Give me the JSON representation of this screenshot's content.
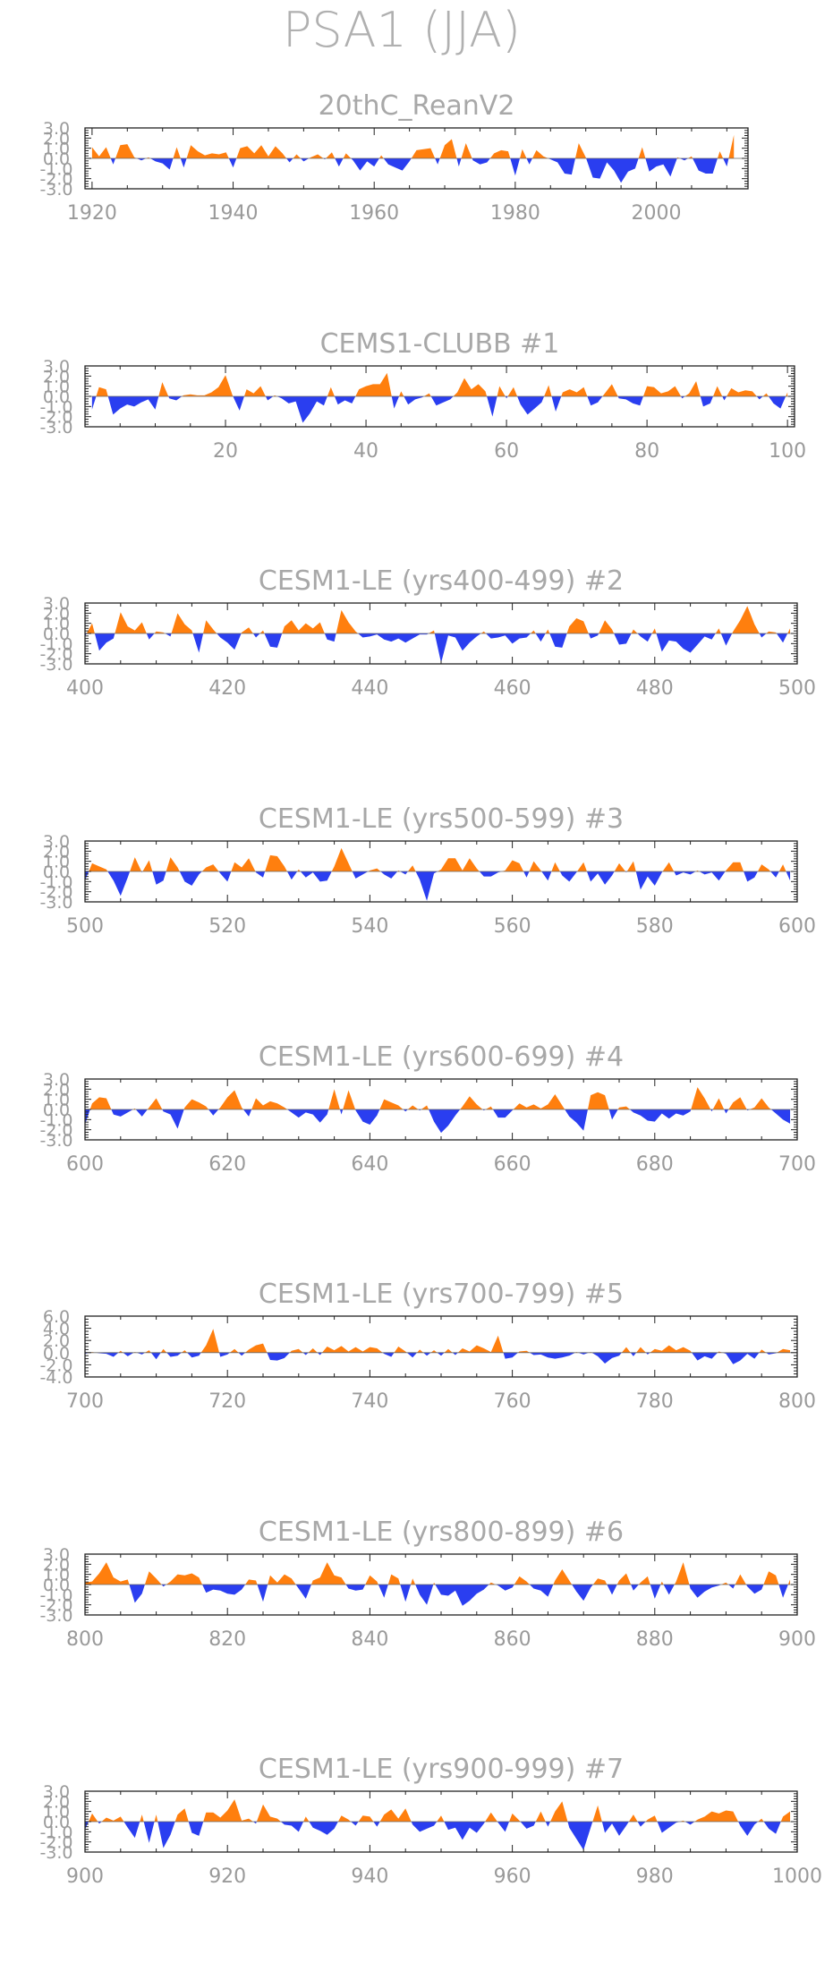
{
  "figure_title": "PSA1 (JJA)",
  "colors": {
    "positive": "#ff7f0e",
    "negative": "#2a3ef0",
    "text": "#a8a8a8",
    "axis": "#222222"
  },
  "chart_data": [
    {
      "type": "area",
      "title": "20thC_ReanV2",
      "x_start": 1920,
      "x_end": 2011,
      "xlim": [
        1919,
        2013
      ],
      "xticks": [
        1920,
        1940,
        1960,
        1980,
        2000
      ],
      "ylim": [
        -3,
        3
      ],
      "yticks": [
        "3.0",
        "2.0",
        "1.0",
        "0.0",
        "-1.0",
        "-2.0",
        "-3.0"
      ],
      "values": [
        1.1,
        0.2,
        1.1,
        -0.6,
        1.3,
        1.4,
        0.1,
        -0.2,
        0.1,
        -0.3,
        -0.5,
        -1.1,
        1.1,
        -0.9,
        1.3,
        0.7,
        0.3,
        0.5,
        0.4,
        0.6,
        -0.9,
        1.0,
        1.2,
        0.5,
        1.3,
        0.2,
        1.2,
        0.5,
        -0.4,
        0.4,
        -0.3,
        0.1,
        0.4,
        -0.1,
        0.6,
        -0.8,
        0.5,
        -0.2,
        -1.2,
        -0.3,
        -0.8,
        0.3,
        -0.6,
        -0.9,
        -1.2,
        -0.3,
        0.8,
        0.9,
        1.0,
        -0.6,
        1.3,
        1.9,
        -0.8,
        1.5,
        -0.2,
        -0.6,
        -0.4,
        0.5,
        0.8,
        0.7,
        -1.7,
        0.9,
        -0.6,
        0.8,
        0.2,
        -0.1,
        -0.4,
        -1.5,
        -1.6,
        1.5,
        0.1,
        -1.9,
        -2.0,
        -0.4,
        -1.2,
        -2.4,
        -1.3,
        -1.0,
        1.1,
        -1.3,
        -0.8,
        -0.6,
        -1.8,
        0.1,
        -0.2,
        0.2,
        -1.2,
        -1.5,
        -1.5,
        0.7,
        -0.8,
        2.3
      ]
    },
    {
      "type": "area",
      "title": "CEMS1-CLUBB          #1",
      "x_start": 1,
      "x_end": 100,
      "xlim": [
        0,
        101
      ],
      "xticks": [
        20,
        40,
        60,
        80,
        100
      ],
      "ylim": [
        -3,
        3
      ],
      "yticks": [
        "3.0",
        "2.0",
        "1.0",
        "0.0",
        "-1.0",
        "-2.0",
        "-3.0"
      ],
      "values": [
        -1.3,
        0.9,
        0.7,
        -1.8,
        -1.2,
        -0.8,
        -1.0,
        -0.6,
        -0.3,
        -1.3,
        1.4,
        -0.2,
        -0.4,
        0.1,
        0.2,
        0.1,
        0.1,
        0.4,
        0.9,
        2.1,
        0.1,
        -1.4,
        0.7,
        0.3,
        1.0,
        -0.4,
        0.1,
        -0.2,
        -0.7,
        -0.5,
        -2.6,
        -1.7,
        -0.5,
        -0.9,
        0.9,
        -0.8,
        -0.4,
        -0.7,
        0.7,
        1.0,
        1.2,
        1.2,
        2.3,
        -1.2,
        0.5,
        -0.8,
        -0.3,
        -0.1,
        0.3,
        -0.9,
        -0.6,
        -0.3,
        0.4,
        1.8,
        0.7,
        1.2,
        0.5,
        -2.0,
        1.0,
        -0.2,
        0.9,
        -0.8,
        -1.8,
        -1.2,
        -0.6,
        1.1,
        -1.5,
        0.4,
        0.7,
        0.4,
        0.9,
        -0.9,
        -0.6,
        0.3,
        1.2,
        -0.2,
        -0.3,
        -0.7,
        -0.9,
        1.0,
        0.9,
        0.3,
        0.5,
        1.0,
        -0.2,
        0.3,
        1.5,
        -1.0,
        -0.7,
        1.0,
        -0.4,
        0.8,
        0.4,
        0.6,
        0.5,
        -0.3,
        0.3,
        -0.7,
        -1.2,
        0.4
      ]
    },
    {
      "type": "area",
      "title": "CESM1-LE (yrs400-499) #2",
      "x_start": 400,
      "x_end": 499,
      "xlim": [
        400,
        500
      ],
      "xticks": [
        400,
        420,
        440,
        460,
        480,
        500
      ],
      "ylim": [
        -3,
        3
      ],
      "yticks": [
        "3.0",
        "2.0",
        "1.0",
        "0.0",
        "-1.0",
        "-2.0",
        "-3.0"
      ],
      "values": [
        -0.3,
        1.0,
        -1.7,
        -0.9,
        -0.5,
        2.1,
        0.7,
        0.3,
        1.1,
        -0.6,
        0.2,
        0.1,
        -0.3,
        2.0,
        0.9,
        0.3,
        -1.9,
        1.3,
        0.4,
        -0.4,
        -0.9,
        -1.6,
        0.1,
        0.6,
        -0.4,
        0.3,
        -1.3,
        -1.4,
        0.7,
        1.3,
        0.3,
        1.0,
        0.5,
        1.1,
        -0.6,
        -0.8,
        2.3,
        1.1,
        0.2,
        -0.4,
        -0.3,
        -0.1,
        -0.6,
        -0.8,
        -0.5,
        -0.9,
        -0.5,
        -0.1,
        -0.1,
        0.3,
        -2.9,
        -0.2,
        -0.4,
        -1.7,
        -0.9,
        -0.3,
        0.2,
        -0.5,
        -0.4,
        -0.2,
        -1.0,
        -0.5,
        -0.4,
        0.3,
        -0.8,
        0.4,
        -1.3,
        -1.4,
        0.7,
        1.5,
        1.2,
        -0.5,
        -0.2,
        1.3,
        0.4,
        -1.1,
        -1.0,
        0.4,
        -0.3,
        -0.8,
        0.5,
        -1.8,
        -0.7,
        -0.8,
        -1.5,
        -1.9,
        -1.1,
        -0.3,
        -0.6,
        0.5,
        -1.2,
        0.2,
        1.3,
        2.7,
        0.9,
        -0.4,
        0.2,
        0.1,
        -0.9,
        0.5
      ]
    },
    {
      "type": "area",
      "title": "CESM1-LE (yrs500-599) #3",
      "x_start": 500,
      "x_end": 599,
      "xlim": [
        500,
        600
      ],
      "xticks": [
        500,
        520,
        540,
        560,
        580,
        600
      ],
      "ylim": [
        -3,
        3
      ],
      "yticks": [
        "3.0",
        "2.0",
        "1.0",
        "0.0",
        "-1.0",
        "-2.0",
        "-3.0"
      ],
      "values": [
        -0.9,
        0.8,
        0.5,
        0.2,
        -0.9,
        -2.4,
        -0.6,
        1.4,
        -0.1,
        1.1,
        -1.3,
        -0.9,
        1.4,
        0.4,
        -1.0,
        -1.4,
        -0.3,
        0.4,
        0.7,
        -0.2,
        -1.0,
        0.9,
        0.4,
        1.3,
        -0.1,
        -0.6,
        1.6,
        1.5,
        0.5,
        -0.8,
        0.2,
        -0.6,
        -0.1,
        -1.0,
        -0.9,
        0.5,
        2.3,
        0.8,
        -0.7,
        -0.3,
        0.1,
        0.3,
        -0.3,
        -0.7,
        0.1,
        -0.3,
        0.6,
        -0.8,
        -2.9,
        -0.2,
        0.2,
        1.3,
        1.3,
        0.1,
        1.3,
        0.3,
        -0.5,
        -0.5,
        -0.1,
        0.1,
        1.1,
        0.8,
        -0.6,
        1.0,
        0.1,
        -0.9,
        0.9,
        -0.4,
        -1.0,
        -0.1,
        0.9,
        -1.0,
        -0.2,
        -1.3,
        -0.4,
        0.8,
        -0.1,
        1.0,
        -1.8,
        -0.5,
        -1.4,
        -0.1,
        0.9,
        -0.4,
        -0.1,
        -0.3,
        0.1,
        -0.3,
        -0.1,
        -0.9,
        0.1,
        0.9,
        0.9,
        -1.0,
        -0.6,
        0.7,
        0.2,
        -0.6,
        0.7,
        -0.9
      ]
    },
    {
      "type": "area",
      "title": "CESM1-LE (yrs600-699) #4",
      "x_start": 600,
      "x_end": 699,
      "xlim": [
        600,
        700
      ],
      "xticks": [
        600,
        620,
        640,
        660,
        680,
        700
      ],
      "ylim": [
        -3,
        3
      ],
      "yticks": [
        "3.0",
        "2.0",
        "1.0",
        "0.0",
        "-1.0",
        "-2.0",
        "-3.0"
      ],
      "values": [
        -1.5,
        0.6,
        1.2,
        1.1,
        -0.5,
        -0.7,
        -0.3,
        0.1,
        -0.7,
        0.2,
        1.1,
        -0.2,
        -0.5,
        -1.9,
        0.2,
        1.0,
        0.7,
        0.3,
        -0.6,
        0.2,
        1.2,
        1.9,
        0.2,
        -0.7,
        1.1,
        0.4,
        0.8,
        0.6,
        0.2,
        -0.3,
        -0.8,
        -0.3,
        -0.5,
        -1.3,
        -0.5,
        2.0,
        -0.5,
        1.9,
        -0.1,
        -1.2,
        -1.5,
        -0.6,
        1.0,
        0.7,
        0.4,
        -0.2,
        0.4,
        -0.1,
        0.4,
        -1.2,
        -2.3,
        -1.6,
        -0.6,
        0.3,
        1.3,
        0.5,
        -0.1,
        0.3,
        -0.8,
        -0.8,
        -0.1,
        0.6,
        0.2,
        0.5,
        0.1,
        0.5,
        1.5,
        0.4,
        -0.7,
        -1.3,
        -2.1,
        1.4,
        1.7,
        1.4,
        -1.0,
        0.2,
        0.3,
        -0.3,
        -0.6,
        -1.1,
        -1.2,
        -0.4,
        -0.9,
        -0.4,
        -0.6,
        -0.2,
        2.2,
        1.1,
        -0.2,
        1.1,
        -0.4,
        0.7,
        1.2,
        -0.1,
        0.2,
        1.1,
        0.2,
        -0.4,
        -1.0,
        -1.4
      ]
    },
    {
      "type": "area",
      "title": "CESM1-LE (yrs700-799) #5",
      "x_start": 700,
      "x_end": 799,
      "xlim": [
        700,
        800
      ],
      "xticks": [
        700,
        720,
        740,
        760,
        780,
        800
      ],
      "ylim": [
        -4,
        6
      ],
      "yticks": [
        "6.0",
        "4.0",
        "2.0",
        "0.0",
        "-2.0",
        "-4.0"
      ],
      "values": [
        -0.2,
        0.1,
        -0.1,
        -0.2,
        -0.7,
        0.3,
        -0.6,
        0.1,
        -0.3,
        0.4,
        -1.1,
        0.6,
        -0.7,
        -0.5,
        0.4,
        -0.8,
        -0.5,
        1.2,
        3.9,
        -0.7,
        -0.3,
        0.6,
        -0.5,
        0.5,
        1.2,
        1.5,
        -1.2,
        -1.3,
        -0.9,
        0.3,
        0.6,
        -0.4,
        0.7,
        -0.4,
        1.0,
        0.4,
        1.1,
        0.2,
        0.9,
        0.2,
        0.9,
        0.7,
        -0.2,
        -0.7,
        1.0,
        0.2,
        -0.8,
        0.5,
        -0.5,
        0.4,
        -0.5,
        0.6,
        -0.4,
        0.7,
        0.2,
        1.2,
        0.7,
        0.1,
        2.8,
        -1.0,
        -0.8,
        0.2,
        0.3,
        -0.4,
        -0.3,
        -0.8,
        -1.0,
        -0.8,
        -0.5,
        0.1,
        -0.3,
        0.1,
        -0.6,
        -1.8,
        -0.9,
        -0.5,
        0.9,
        -0.6,
        0.9,
        -0.3,
        0.6,
        0.3,
        1.2,
        0.4,
        0.9,
        0.3,
        -1.3,
        -0.6,
        -1.0,
        0.2,
        -0.2,
        -1.9,
        -1.3,
        -0.2,
        -1.0,
        0.5,
        -0.3,
        -0.1,
        0.6,
        0.4
      ]
    },
    {
      "type": "area",
      "title": "CESM1-LE (yrs800-899) #6",
      "x_start": 800,
      "x_end": 899,
      "xlim": [
        800,
        900
      ],
      "xticks": [
        800,
        820,
        840,
        860,
        880,
        900
      ],
      "ylim": [
        -3,
        3
      ],
      "yticks": [
        "3.0",
        "2.0",
        "1.0",
        "0.0",
        "-1.0",
        "-2.0",
        "-3.0"
      ],
      "values": [
        0.2,
        0.3,
        1.1,
        2.2,
        0.7,
        0.3,
        0.5,
        -1.8,
        -0.9,
        1.3,
        0.6,
        -0.2,
        0.3,
        1.0,
        0.9,
        1.1,
        0.7,
        -0.8,
        -0.5,
        -0.6,
        -0.9,
        -1.0,
        -0.5,
        0.5,
        0.4,
        -1.7,
        0.9,
        0.2,
        1.0,
        0.6,
        -0.4,
        -1.4,
        0.4,
        0.7,
        2.2,
        0.9,
        0.7,
        -0.4,
        -0.6,
        -0.5,
        0.9,
        0.3,
        -1.3,
        1.0,
        0.6,
        -1.7,
        0.6,
        -1.0,
        -2.0,
        0.2,
        -1.0,
        -1.1,
        -0.6,
        -2.1,
        -1.6,
        -0.9,
        -0.5,
        0.2,
        -0.1,
        -0.6,
        -0.3,
        0.8,
        0.3,
        -0.4,
        -0.6,
        -1.2,
        0.4,
        1.5,
        0.4,
        -0.7,
        -1.6,
        -0.3,
        0.6,
        0.4,
        -1.0,
        0.4,
        1.1,
        -0.6,
        0.2,
        0.8,
        -1.4,
        0.3,
        -1.0,
        0.3,
        2.2,
        -0.4,
        -1.3,
        -0.7,
        -0.3,
        -0.1,
        0.2,
        -0.4,
        1.0,
        -0.2,
        -0.9,
        -0.5,
        1.3,
        0.9,
        -1.3,
        0.5
      ]
    },
    {
      "type": "area",
      "title": "CESM1-LE (yrs900-999) #7",
      "x_start": 900,
      "x_end": 999,
      "xlim": [
        900,
        1000
      ],
      "xticks": [
        900,
        920,
        940,
        960,
        980,
        1000
      ],
      "ylim": [
        -3,
        3
      ],
      "yticks": [
        "3.0",
        "2.0",
        "1.0",
        "0.0",
        "-1.0",
        "-2.0",
        "-3.0"
      ],
      "values": [
        -0.8,
        0.8,
        -0.2,
        0.4,
        0.1,
        0.5,
        -0.6,
        -1.6,
        0.7,
        -2.1,
        0.7,
        -2.6,
        -1.3,
        0.7,
        1.3,
        -1.1,
        -1.4,
        0.9,
        0.9,
        0.4,
        1.1,
        2.2,
        0.1,
        0.3,
        -0.2,
        1.7,
        0.5,
        0.3,
        -0.3,
        -0.4,
        -1.0,
        0.5,
        -0.6,
        -0.9,
        -1.3,
        -0.7,
        0.6,
        0.2,
        -0.4,
        0.6,
        0.5,
        -0.5,
        0.7,
        1.2,
        0.3,
        1.3,
        -0.3,
        -1.0,
        -0.7,
        -0.4,
        0.6,
        -0.8,
        -0.6,
        -1.8,
        -0.6,
        -1.1,
        -0.2,
        0.9,
        -0.1,
        -1.0,
        0.8,
        0.1,
        -0.7,
        -0.4,
        1.0,
        -0.5,
        1.0,
        2.0,
        -0.6,
        -1.7,
        -2.8,
        -0.6,
        1.6,
        -1.1,
        -0.2,
        -1.4,
        -0.4,
        0.7,
        -0.5,
        0.2,
        0.6,
        -1.1,
        -0.6,
        -0.1,
        0.1,
        -0.3,
        0.2,
        0.5,
        1.0,
        0.8,
        1.1,
        1.0,
        -0.4,
        -1.4,
        -0.3,
        0.3,
        -0.7,
        -1.2,
        0.5,
        1.0
      ]
    }
  ]
}
